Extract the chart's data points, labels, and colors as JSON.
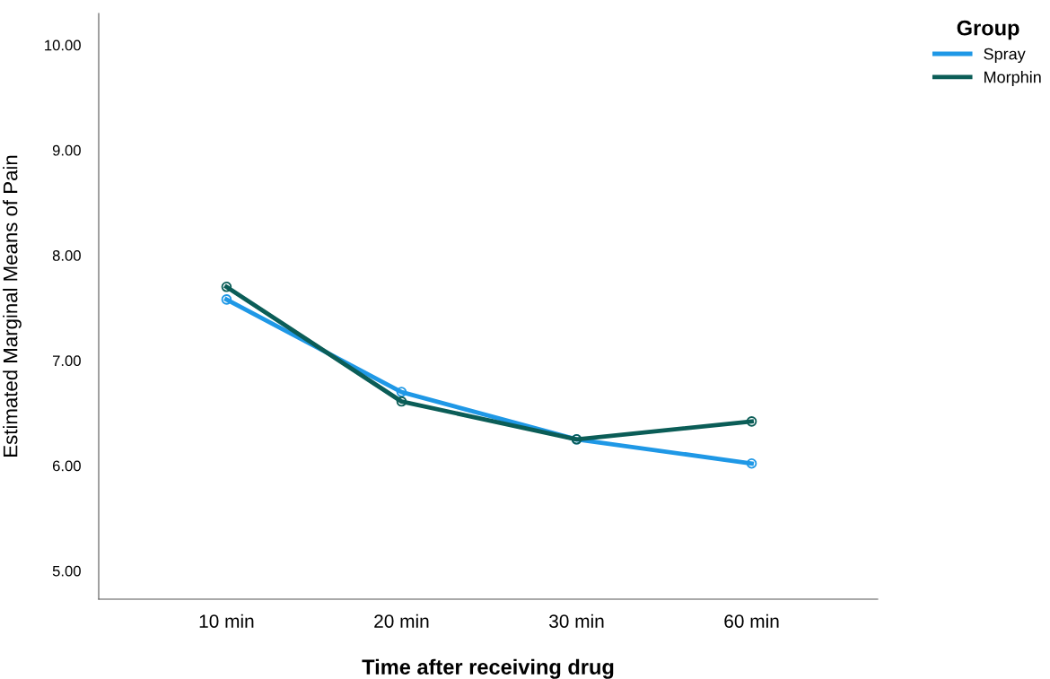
{
  "chart_data": {
    "type": "line",
    "xlabel": "Time after receiving drug",
    "ylabel": "Estimated Marginal Means of Pain",
    "legend_title": "Group",
    "categories": [
      "10 min",
      "20 min",
      "30 min",
      "60 min"
    ],
    "series": [
      {
        "name": "Spray",
        "color": "#1f98e6",
        "values": [
          7.58,
          6.7,
          6.25,
          6.02
        ]
      },
      {
        "name": "Morphin",
        "color": "#0b5d57",
        "values": [
          7.7,
          6.61,
          6.25,
          6.42
        ]
      }
    ],
    "ylim": [
      4.73,
      10.3
    ],
    "yticks": [
      {
        "value": 5,
        "label": "5.00"
      },
      {
        "value": 6,
        "label": "6.00"
      },
      {
        "value": 7,
        "label": "7.00"
      },
      {
        "value": 8,
        "label": "8.00"
      },
      {
        "value": 9,
        "label": "9.00"
      },
      {
        "value": 10,
        "label": "10.00"
      }
    ],
    "grid": false,
    "legend": "top right",
    "marker": "circle",
    "line_style": "solid"
  }
}
